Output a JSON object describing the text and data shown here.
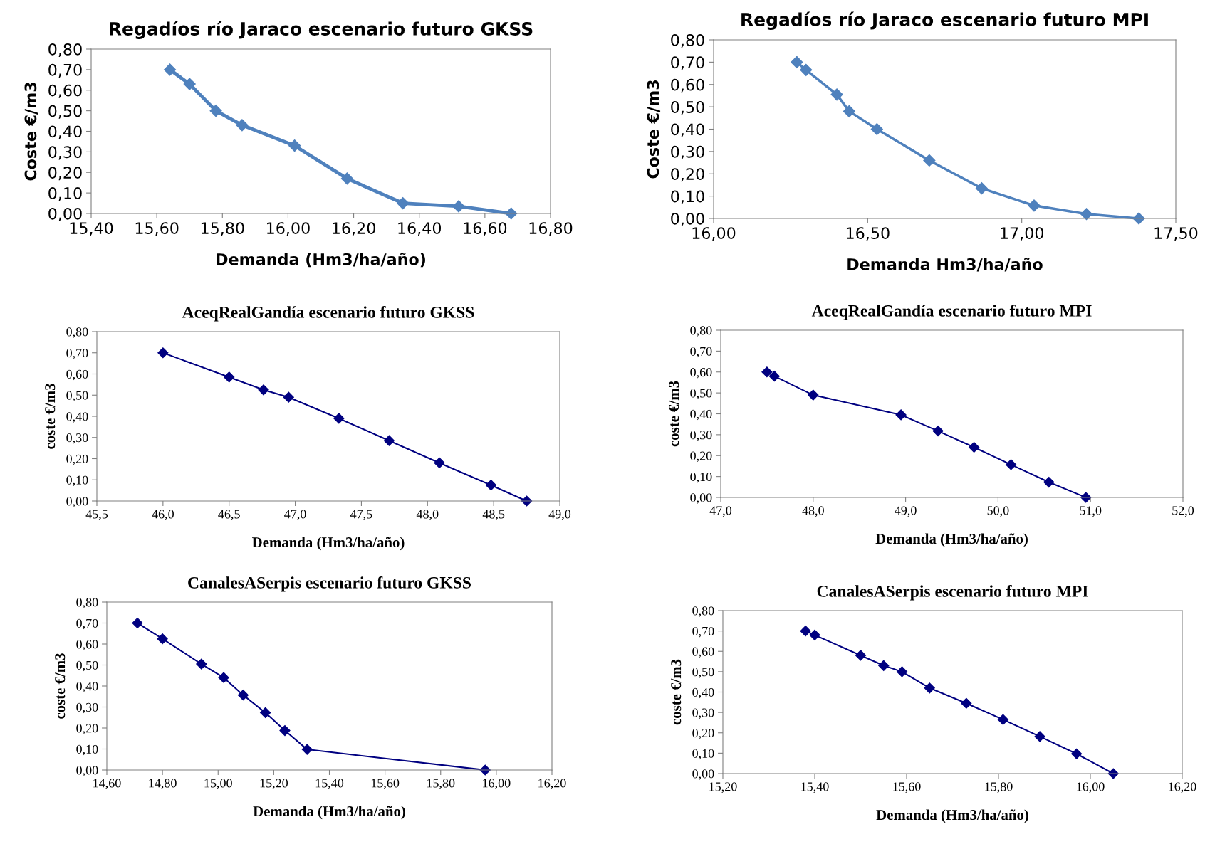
{
  "chart_data": [
    {
      "type": "line",
      "title": "Regadíos río Jaraco escenario futuro GKSS",
      "xlabel": "Demanda (Hm3/ha/año)",
      "ylabel": "Coste €/m3",
      "marker": "diamond",
      "grid": false,
      "series": [
        {
          "color": "#4f81bd",
          "x": [
            15.64,
            15.7,
            15.78,
            15.86,
            16.02,
            16.18,
            16.35,
            16.52,
            16.68
          ],
          "values": [
            0.7,
            0.63,
            0.5,
            0.43,
            0.33,
            0.17,
            0.05,
            0.035,
            0.0
          ]
        }
      ],
      "xlim": [
        15.4,
        16.8
      ],
      "xticks": [
        {
          "value": 15.4,
          "label": "15,40"
        },
        {
          "value": 15.6,
          "label": "15,60"
        },
        {
          "value": 15.8,
          "label": "15,80"
        },
        {
          "value": 16.0,
          "label": "16,00"
        },
        {
          "value": 16.2,
          "label": "16,20"
        },
        {
          "value": 16.4,
          "label": "16,40"
        },
        {
          "value": 16.6,
          "label": "16,60"
        },
        {
          "value": 16.8,
          "label": "16,80"
        }
      ],
      "ylim": [
        0,
        0.8
      ],
      "yticks": [
        {
          "value": 0,
          "label": "0,00"
        },
        {
          "value": 0.1,
          "label": "0,10"
        },
        {
          "value": 0.2,
          "label": "0,20"
        },
        {
          "value": 0.3,
          "label": "0,30"
        },
        {
          "value": 0.4,
          "label": "0,40"
        },
        {
          "value": 0.5,
          "label": "0,50"
        },
        {
          "value": 0.6,
          "label": "0,60"
        },
        {
          "value": 0.7,
          "label": "0,70"
        },
        {
          "value": 0.8,
          "label": "0,80"
        }
      ]
    },
    {
      "type": "line",
      "title": "Regadíos río Jaraco escenario futuro MPI",
      "xlabel": "Demanda Hm3/ha/año",
      "ylabel": "Coste €/m3",
      "marker": "diamond",
      "grid": false,
      "series": [
        {
          "color": "#4f81bd",
          "x": [
            16.27,
            16.3,
            16.4,
            16.44,
            16.53,
            16.7,
            16.87,
            17.04,
            17.21,
            17.38
          ],
          "values": [
            0.7,
            0.665,
            0.555,
            0.48,
            0.4,
            0.26,
            0.135,
            0.058,
            0.02,
            0.0
          ]
        }
      ],
      "xlim": [
        16.0,
        17.5
      ],
      "xticks": [
        {
          "value": 16.0,
          "label": "16,00"
        },
        {
          "value": 16.5,
          "label": "16,50"
        },
        {
          "value": 17.0,
          "label": "17,00"
        },
        {
          "value": 17.5,
          "label": "17,50"
        }
      ],
      "ylim": [
        0,
        0.8
      ],
      "yticks": [
        {
          "value": 0,
          "label": "0,00"
        },
        {
          "value": 0.1,
          "label": "0,10"
        },
        {
          "value": 0.2,
          "label": "0,20"
        },
        {
          "value": 0.3,
          "label": "0,30"
        },
        {
          "value": 0.4,
          "label": "0,40"
        },
        {
          "value": 0.5,
          "label": "0,50"
        },
        {
          "value": 0.6,
          "label": "0,60"
        },
        {
          "value": 0.7,
          "label": "0,70"
        },
        {
          "value": 0.8,
          "label": "0,80"
        }
      ]
    },
    {
      "type": "line",
      "title": "AceqRealGandía escenario futuro GKSS",
      "xlabel": "Demanda (Hm3/ha/año)",
      "ylabel": "coste €/m3",
      "marker": "diamond",
      "grid": false,
      "series": [
        {
          "color": "#000080",
          "x": [
            46.0,
            46.5,
            46.76,
            46.95,
            47.33,
            47.71,
            48.09,
            48.48,
            48.75
          ],
          "values": [
            0.7,
            0.585,
            0.525,
            0.49,
            0.39,
            0.285,
            0.18,
            0.075,
            0.0
          ]
        }
      ],
      "xlim": [
        45.5,
        49.0
      ],
      "xticks": [
        {
          "value": 45.5,
          "label": "45,5"
        },
        {
          "value": 46.0,
          "label": "46,0"
        },
        {
          "value": 46.5,
          "label": "46,5"
        },
        {
          "value": 47.0,
          "label": "47,0"
        },
        {
          "value": 47.5,
          "label": "47,5"
        },
        {
          "value": 48.0,
          "label": "48,0"
        },
        {
          "value": 48.5,
          "label": "48,5"
        },
        {
          "value": 49.0,
          "label": "49,0"
        }
      ],
      "ylim": [
        0,
        0.8
      ],
      "yticks": [
        {
          "value": 0,
          "label": "0,00"
        },
        {
          "value": 0.1,
          "label": "0,10"
        },
        {
          "value": 0.2,
          "label": "0,20"
        },
        {
          "value": 0.3,
          "label": "0,30"
        },
        {
          "value": 0.4,
          "label": "0,40"
        },
        {
          "value": 0.5,
          "label": "0,50"
        },
        {
          "value": 0.6,
          "label": "0,60"
        },
        {
          "value": 0.7,
          "label": "0,70"
        },
        {
          "value": 0.8,
          "label": "0,80"
        }
      ]
    },
    {
      "type": "line",
      "title": "AceqRealGandía escenario futuro MPI",
      "xlabel": "Demanda (Hm3/ha/año)",
      "ylabel": "coste €/m3",
      "marker": "diamond",
      "grid": false,
      "series": [
        {
          "color": "#000080",
          "x": [
            47.5,
            47.58,
            48.0,
            48.95,
            49.35,
            49.74,
            50.14,
            50.55,
            50.95
          ],
          "values": [
            0.6,
            0.58,
            0.49,
            0.395,
            0.318,
            0.24,
            0.157,
            0.073,
            0.0
          ]
        }
      ],
      "xlim": [
        47.0,
        52.0
      ],
      "xticks": [
        {
          "value": 47.0,
          "label": "47,0"
        },
        {
          "value": 48.0,
          "label": "48,0"
        },
        {
          "value": 49.0,
          "label": "49,0"
        },
        {
          "value": 50.0,
          "label": "50,0"
        },
        {
          "value": 51.0,
          "label": "51,0"
        },
        {
          "value": 52.0,
          "label": "52,0"
        }
      ],
      "ylim": [
        0,
        0.8
      ],
      "yticks": [
        {
          "value": 0,
          "label": "0,00"
        },
        {
          "value": 0.1,
          "label": "0,10"
        },
        {
          "value": 0.2,
          "label": "0,20"
        },
        {
          "value": 0.3,
          "label": "0,30"
        },
        {
          "value": 0.4,
          "label": "0,40"
        },
        {
          "value": 0.5,
          "label": "0,50"
        },
        {
          "value": 0.6,
          "label": "0,60"
        },
        {
          "value": 0.7,
          "label": "0,70"
        },
        {
          "value": 0.8,
          "label": "0,80"
        }
      ]
    },
    {
      "type": "line",
      "title": "CanalesASerpis escenario futuro GKSS",
      "xlabel": "Demanda (Hm3/ha/año)",
      "ylabel": "coste €/m3",
      "marker": "diamond",
      "grid": false,
      "series": [
        {
          "color": "#000080",
          "x": [
            14.71,
            14.8,
            14.94,
            15.02,
            15.09,
            15.17,
            15.24,
            15.32,
            15.96
          ],
          "values": [
            0.7,
            0.625,
            0.505,
            0.44,
            0.357,
            0.273,
            0.188,
            0.098,
            0.0
          ]
        }
      ],
      "xlim": [
        14.6,
        16.2
      ],
      "xticks": [
        {
          "value": 14.6,
          "label": "14,60"
        },
        {
          "value": 14.8,
          "label": "14,80"
        },
        {
          "value": 15.0,
          "label": "15,00"
        },
        {
          "value": 15.2,
          "label": "15,20"
        },
        {
          "value": 15.4,
          "label": "15,40"
        },
        {
          "value": 15.6,
          "label": "15,60"
        },
        {
          "value": 15.8,
          "label": "15,80"
        },
        {
          "value": 16.0,
          "label": "16,00"
        },
        {
          "value": 16.2,
          "label": "16,20"
        }
      ],
      "ylim": [
        0,
        0.8
      ],
      "yticks": [
        {
          "value": 0,
          "label": "0,00"
        },
        {
          "value": 0.1,
          "label": "0,10"
        },
        {
          "value": 0.2,
          "label": "0,20"
        },
        {
          "value": 0.3,
          "label": "0,30"
        },
        {
          "value": 0.4,
          "label": "0,40"
        },
        {
          "value": 0.5,
          "label": "0,50"
        },
        {
          "value": 0.6,
          "label": "0,60"
        },
        {
          "value": 0.7,
          "label": "0,70"
        },
        {
          "value": 0.8,
          "label": "0,80"
        }
      ]
    },
    {
      "type": "line",
      "title": "CanalesASerpis escenario futuro MPI",
      "xlabel": "Demanda (Hm3/ha/año)",
      "ylabel": "coste €/m3",
      "marker": "diamond",
      "grid": false,
      "series": [
        {
          "color": "#000080",
          "x": [
            15.38,
            15.4,
            15.5,
            15.55,
            15.59,
            15.65,
            15.73,
            15.81,
            15.89,
            15.97,
            16.05
          ],
          "values": [
            0.7,
            0.68,
            0.58,
            0.53,
            0.5,
            0.42,
            0.345,
            0.265,
            0.182,
            0.097,
            0.0
          ]
        }
      ],
      "xlim": [
        15.2,
        16.2
      ],
      "xticks": [
        {
          "value": 15.2,
          "label": "15,20"
        },
        {
          "value": 15.4,
          "label": "15,40"
        },
        {
          "value": 15.6,
          "label": "15,60"
        },
        {
          "value": 15.8,
          "label": "15,80"
        },
        {
          "value": 16.0,
          "label": "16,00"
        },
        {
          "value": 16.2,
          "label": "16,20"
        }
      ],
      "ylim": [
        0,
        0.8
      ],
      "yticks": [
        {
          "value": 0,
          "label": "0,00"
        },
        {
          "value": 0.1,
          "label": "0,10"
        },
        {
          "value": 0.2,
          "label": "0,20"
        },
        {
          "value": 0.3,
          "label": "0,30"
        },
        {
          "value": 0.4,
          "label": "0,40"
        },
        {
          "value": 0.5,
          "label": "0,50"
        },
        {
          "value": 0.6,
          "label": "0,60"
        },
        {
          "value": 0.7,
          "label": "0,70"
        },
        {
          "value": 0.8,
          "label": "0,80"
        }
      ]
    }
  ]
}
